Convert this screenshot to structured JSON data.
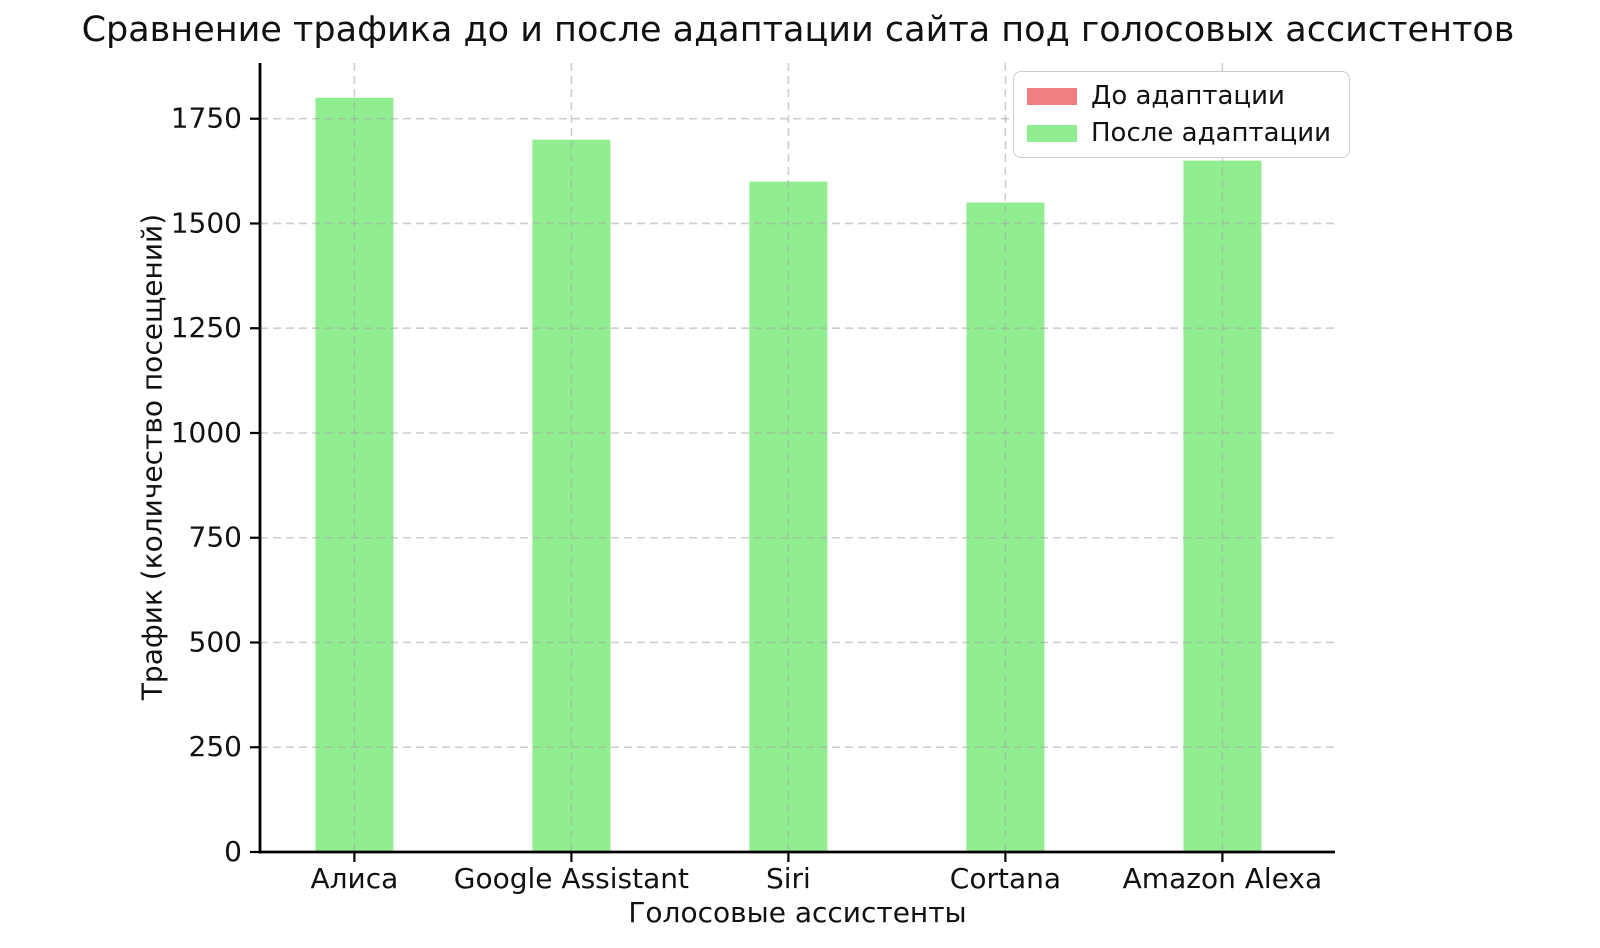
{
  "figure": {
    "background": "#ffffff",
    "text_color": "#111111",
    "grid_color": "#cccccc",
    "spine_color": "#000000"
  },
  "chart_data": {
    "type": "bar",
    "title": "Сравнение трафика до и после адаптации сайта под голосовых ассистентов",
    "xlabel": "Голосовые ассистенты",
    "ylabel": "Трафик (количество посещений)",
    "categories": [
      "Алиса",
      "Google Assistant",
      "Siri",
      "Cortana",
      "Amazon Alexa"
    ],
    "series": [
      {
        "name": "До адаптации",
        "color": "#f08080",
        "bars_visible": false,
        "values": []
      },
      {
        "name": "После адаптации",
        "color": "#90ee90",
        "bars_visible": true,
        "values": [
          1800,
          1700,
          1600,
          1550,
          1650
        ]
      }
    ],
    "ylim": [
      0,
      1883
    ],
    "yticks": [
      0,
      250,
      500,
      750,
      1000,
      1250,
      1500,
      1750
    ],
    "grid": {
      "style": "dashed",
      "horizontal": true,
      "vertical": true
    },
    "legend_position": "upper right"
  }
}
